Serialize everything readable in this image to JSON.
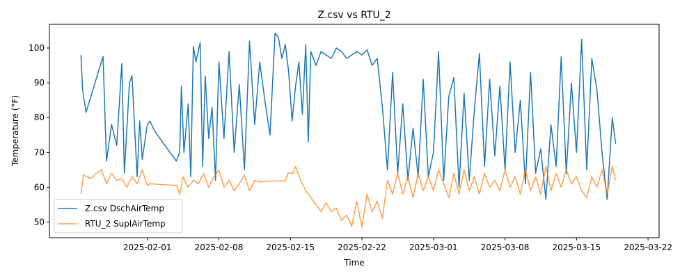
{
  "chart_data": {
    "type": "line",
    "title": "Z.csv vs RTU_2",
    "xlabel": "Time",
    "ylabel": "Temperature (°F)",
    "xlim": [
      "2025-01-22T10:00",
      "2025-03-23T02:00"
    ],
    "ylim": [
      45.5,
      106.8
    ],
    "x_ticks": [
      "2025-02-01",
      "2025-02-08",
      "2025-02-15",
      "2025-02-22",
      "2025-03-01",
      "2025-03-08",
      "2025-03-15",
      "2025-03-22"
    ],
    "y_ticks": [
      50,
      60,
      70,
      80,
      90,
      100
    ],
    "grid": false,
    "legend_position": "lower-left",
    "series": [
      {
        "name": "Z.csv DschAirTemp",
        "color": "#1f77b4",
        "points": [
          [
            "2025-01-25T12:00",
            98
          ],
          [
            "2025-01-25T16:00",
            88
          ],
          [
            "2025-01-26T00:00",
            81.5
          ],
          [
            "2025-01-27T12:00",
            96
          ],
          [
            "2025-01-27T16:00",
            97.5
          ],
          [
            "2025-01-28T00:00",
            67.5
          ],
          [
            "2025-01-28T12:00",
            78
          ],
          [
            "2025-01-29T00:00",
            72
          ],
          [
            "2025-01-29T12:00",
            95.5
          ],
          [
            "2025-01-29T18:00",
            64
          ],
          [
            "2025-01-30T06:00",
            90
          ],
          [
            "2025-01-30T12:00",
            92
          ],
          [
            "2025-01-31T00:00",
            63
          ],
          [
            "2025-01-31T06:00",
            79
          ],
          [
            "2025-01-31T12:00",
            68
          ],
          [
            "2025-02-01T00:00",
            78
          ],
          [
            "2025-02-01T06:00",
            79
          ],
          [
            "2025-02-01T18:00",
            76
          ],
          [
            "2025-02-03T20:00",
            67.5
          ],
          [
            "2025-02-04T04:00",
            70
          ],
          [
            "2025-02-04T08:00",
            89
          ],
          [
            "2025-02-04T14:00",
            70
          ],
          [
            "2025-02-05T00:00",
            84
          ],
          [
            "2025-02-05T06:00",
            63
          ],
          [
            "2025-02-05T12:00",
            100.5
          ],
          [
            "2025-02-05T18:00",
            96
          ],
          [
            "2025-02-06T04:00",
            101.5
          ],
          [
            "2025-02-06T10:00",
            66
          ],
          [
            "2025-02-06T16:00",
            92
          ],
          [
            "2025-02-07T00:00",
            74
          ],
          [
            "2025-02-07T08:00",
            83
          ],
          [
            "2025-02-07T16:00",
            62
          ],
          [
            "2025-02-08T00:00",
            96
          ],
          [
            "2025-02-08T12:00",
            74
          ],
          [
            "2025-02-09T00:00",
            99
          ],
          [
            "2025-02-09T12:00",
            70
          ],
          [
            "2025-02-10T00:00",
            89.5
          ],
          [
            "2025-02-10T12:00",
            65
          ],
          [
            "2025-02-11T00:00",
            102
          ],
          [
            "2025-02-11T12:00",
            78
          ],
          [
            "2025-02-12T00:00",
            96
          ],
          [
            "2025-02-12T12:00",
            85
          ],
          [
            "2025-02-13T00:00",
            75
          ],
          [
            "2025-02-13T12:00",
            104.3
          ],
          [
            "2025-02-13T20:00",
            103
          ],
          [
            "2025-02-14T04:00",
            97
          ],
          [
            "2025-02-14T12:00",
            101
          ],
          [
            "2025-02-14T20:00",
            93
          ],
          [
            "2025-02-15T04:00",
            79
          ],
          [
            "2025-02-15T12:00",
            89
          ],
          [
            "2025-02-15T20:00",
            96
          ],
          [
            "2025-02-16T04:00",
            81
          ],
          [
            "2025-02-16T12:00",
            101
          ],
          [
            "2025-02-16T18:00",
            73
          ],
          [
            "2025-02-17T00:00",
            99
          ],
          [
            "2025-02-17T12:00",
            95
          ],
          [
            "2025-02-18T00:00",
            99
          ],
          [
            "2025-02-18T12:00",
            98
          ],
          [
            "2025-02-19T00:00",
            97
          ],
          [
            "2025-02-19T12:00",
            100
          ],
          [
            "2025-02-20T00:00",
            99
          ],
          [
            "2025-02-20T12:00",
            97
          ],
          [
            "2025-02-21T00:00",
            98
          ],
          [
            "2025-02-21T12:00",
            99
          ],
          [
            "2025-02-22T00:00",
            98
          ],
          [
            "2025-02-22T12:00",
            99.5
          ],
          [
            "2025-02-23T00:00",
            95
          ],
          [
            "2025-02-23T12:00",
            97
          ],
          [
            "2025-02-24T00:00",
            83
          ],
          [
            "2025-02-24T12:00",
            65
          ],
          [
            "2025-02-25T00:00",
            93
          ],
          [
            "2025-02-25T12:00",
            64
          ],
          [
            "2025-02-26T00:00",
            84
          ],
          [
            "2025-02-26T12:00",
            62
          ],
          [
            "2025-02-27T00:00",
            77
          ],
          [
            "2025-02-27T12:00",
            63
          ],
          [
            "2025-02-28T00:00",
            91
          ],
          [
            "2025-02-28T12:00",
            63
          ],
          [
            "2025-03-01T00:00",
            70
          ],
          [
            "2025-03-01T12:00",
            99
          ],
          [
            "2025-03-02T00:00",
            62
          ],
          [
            "2025-03-02T12:00",
            86
          ],
          [
            "2025-03-03T00:00",
            91.5
          ],
          [
            "2025-03-03T12:00",
            60
          ],
          [
            "2025-03-04T00:00",
            87
          ],
          [
            "2025-03-04T12:00",
            62
          ],
          [
            "2025-03-05T00:00",
            82
          ],
          [
            "2025-03-05T12:00",
            98.5
          ],
          [
            "2025-03-06T00:00",
            66
          ],
          [
            "2025-03-06T12:00",
            91
          ],
          [
            "2025-03-07T00:00",
            69
          ],
          [
            "2025-03-07T12:00",
            89
          ],
          [
            "2025-03-08T00:00",
            65
          ],
          [
            "2025-03-08T12:00",
            96
          ],
          [
            "2025-03-09T00:00",
            70
          ],
          [
            "2025-03-09T12:00",
            85
          ],
          [
            "2025-03-10T00:00",
            61
          ],
          [
            "2025-03-10T12:00",
            93
          ],
          [
            "2025-03-11T00:00",
            64
          ],
          [
            "2025-03-11T12:00",
            71
          ],
          [
            "2025-03-12T00:00",
            56.5
          ],
          [
            "2025-03-12T12:00",
            78
          ],
          [
            "2025-03-13T00:00",
            66
          ],
          [
            "2025-03-13T12:00",
            97.5
          ],
          [
            "2025-03-14T00:00",
            64
          ],
          [
            "2025-03-14T12:00",
            90
          ],
          [
            "2025-03-15T00:00",
            70
          ],
          [
            "2025-03-15T12:00",
            102.5
          ],
          [
            "2025-03-16T00:00",
            65
          ],
          [
            "2025-03-16T12:00",
            97
          ],
          [
            "2025-03-17T00:00",
            88
          ],
          [
            "2025-03-17T12:00",
            70
          ],
          [
            "2025-03-18T00:00",
            56.5
          ],
          [
            "2025-03-18T12:00",
            80
          ],
          [
            "2025-03-18T20:00",
            72.5
          ]
        ]
      },
      {
        "name": "RTU_2 SuplAirTemp",
        "color": "#ff7f0e",
        "points": [
          [
            "2025-01-25T12:00",
            58
          ],
          [
            "2025-01-25T18:00",
            63.5
          ],
          [
            "2025-01-26T12:00",
            62.5
          ],
          [
            "2025-01-27T00:00",
            64
          ],
          [
            "2025-01-27T12:00",
            65
          ],
          [
            "2025-01-28T00:00",
            61
          ],
          [
            "2025-01-28T12:00",
            64
          ],
          [
            "2025-01-29T00:00",
            62
          ],
          [
            "2025-01-29T12:00",
            62.5
          ],
          [
            "2025-01-30T00:00",
            60
          ],
          [
            "2025-01-30T12:00",
            63
          ],
          [
            "2025-01-31T00:00",
            61
          ],
          [
            "2025-01-31T12:00",
            65
          ],
          [
            "2025-02-01T00:00",
            60.5
          ],
          [
            "2025-02-01T06:00",
            61
          ],
          [
            "2025-02-03T20:00",
            60.5
          ],
          [
            "2025-02-04T04:00",
            58
          ],
          [
            "2025-02-04T12:00",
            63
          ],
          [
            "2025-02-05T00:00",
            60
          ],
          [
            "2025-02-05T12:00",
            62
          ],
          [
            "2025-02-06T00:00",
            61
          ],
          [
            "2025-02-06T12:00",
            64
          ],
          [
            "2025-02-07T00:00",
            60
          ],
          [
            "2025-02-07T12:00",
            63
          ],
          [
            "2025-02-08T00:00",
            65
          ],
          [
            "2025-02-08T12:00",
            60
          ],
          [
            "2025-02-09T00:00",
            62
          ],
          [
            "2025-02-09T12:00",
            59
          ],
          [
            "2025-02-10T00:00",
            61
          ],
          [
            "2025-02-10T12:00",
            63.5
          ],
          [
            "2025-02-11T00:00",
            59
          ],
          [
            "2025-02-11T12:00",
            62
          ],
          [
            "2025-02-12T00:00",
            61.5
          ],
          [
            "2025-02-13T00:00",
            61.8
          ],
          [
            "2025-02-14T00:00",
            61.8
          ],
          [
            "2025-02-14T12:00",
            61.8
          ],
          [
            "2025-02-14T18:00",
            64
          ],
          [
            "2025-02-15T06:00",
            64
          ],
          [
            "2025-02-15T12:00",
            66
          ],
          [
            "2025-02-16T00:00",
            62
          ],
          [
            "2025-02-16T12:00",
            59
          ],
          [
            "2025-02-17T00:00",
            57
          ],
          [
            "2025-02-17T12:00",
            55
          ],
          [
            "2025-02-18T00:00",
            53
          ],
          [
            "2025-02-18T12:00",
            55.5
          ],
          [
            "2025-02-19T00:00",
            53
          ],
          [
            "2025-02-19T12:00",
            54
          ],
          [
            "2025-02-20T00:00",
            50.5
          ],
          [
            "2025-02-20T12:00",
            52
          ],
          [
            "2025-02-21T00:00",
            48.8
          ],
          [
            "2025-02-21T12:00",
            56
          ],
          [
            "2025-02-22T00:00",
            48.5
          ],
          [
            "2025-02-22T12:00",
            58
          ],
          [
            "2025-02-23T00:00",
            53
          ],
          [
            "2025-02-23T12:00",
            56
          ],
          [
            "2025-02-24T00:00",
            51
          ],
          [
            "2025-02-24T12:00",
            62
          ],
          [
            "2025-02-25T00:00",
            58
          ],
          [
            "2025-02-25T12:00",
            64
          ],
          [
            "2025-02-26T00:00",
            58
          ],
          [
            "2025-02-26T12:00",
            63
          ],
          [
            "2025-02-27T00:00",
            57
          ],
          [
            "2025-02-27T12:00",
            64
          ],
          [
            "2025-02-28T00:00",
            59
          ],
          [
            "2025-02-28T12:00",
            63
          ],
          [
            "2025-03-01T00:00",
            59
          ],
          [
            "2025-03-01T12:00",
            65
          ],
          [
            "2025-03-02T00:00",
            61
          ],
          [
            "2025-03-02T12:00",
            57
          ],
          [
            "2025-03-03T00:00",
            64
          ],
          [
            "2025-03-03T12:00",
            58
          ],
          [
            "2025-03-04T00:00",
            65
          ],
          [
            "2025-03-04T12:00",
            59
          ],
          [
            "2025-03-05T00:00",
            63
          ],
          [
            "2025-03-05T12:00",
            58
          ],
          [
            "2025-03-06T00:00",
            64
          ],
          [
            "2025-03-06T12:00",
            60
          ],
          [
            "2025-03-07T00:00",
            62
          ],
          [
            "2025-03-07T12:00",
            59
          ],
          [
            "2025-03-08T00:00",
            65
          ],
          [
            "2025-03-08T12:00",
            60
          ],
          [
            "2025-03-09T00:00",
            63
          ],
          [
            "2025-03-09T12:00",
            58
          ],
          [
            "2025-03-10T00:00",
            65
          ],
          [
            "2025-03-10T12:00",
            59
          ],
          [
            "2025-03-11T00:00",
            63
          ],
          [
            "2025-03-11T12:00",
            58
          ],
          [
            "2025-03-12T00:00",
            66
          ],
          [
            "2025-03-12T12:00",
            59
          ],
          [
            "2025-03-13T00:00",
            64
          ],
          [
            "2025-03-13T12:00",
            60
          ],
          [
            "2025-03-14T00:00",
            65
          ],
          [
            "2025-03-14T12:00",
            61
          ],
          [
            "2025-03-15T00:00",
            63
          ],
          [
            "2025-03-15T12:00",
            59
          ],
          [
            "2025-03-16T00:00",
            57
          ],
          [
            "2025-03-16T12:00",
            63
          ],
          [
            "2025-03-17T00:00",
            60
          ],
          [
            "2025-03-17T12:00",
            65
          ],
          [
            "2025-03-18T00:00",
            58
          ],
          [
            "2025-03-18T12:00",
            66
          ],
          [
            "2025-03-18T20:00",
            62
          ]
        ]
      }
    ]
  }
}
